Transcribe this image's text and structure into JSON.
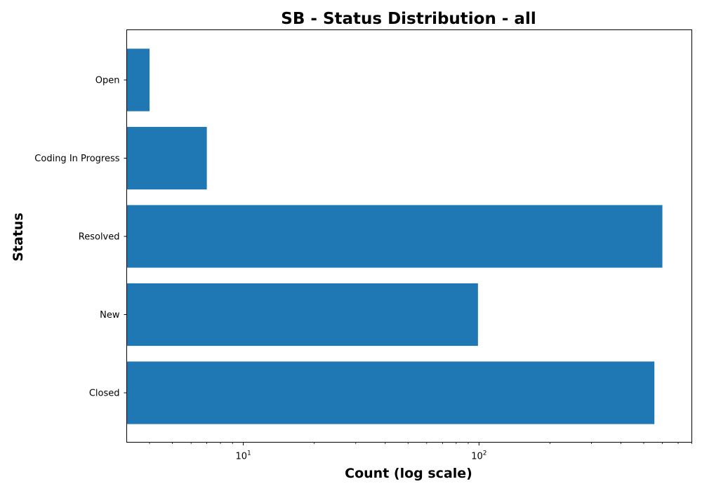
{
  "chart_data": {
    "type": "bar",
    "orientation": "horizontal",
    "title": "SB - Status Distribution - all",
    "xlabel": "Count (log scale)",
    "ylabel": "Status",
    "x_scale": "log",
    "xlim": [
      3.2,
      800
    ],
    "x_major_ticks": [
      10,
      100
    ],
    "categories": [
      "Open",
      "Coding In Progress",
      "Resolved",
      "New",
      "Closed"
    ],
    "values": [
      4,
      7,
      600,
      99,
      555
    ],
    "bar_color": "#1f77b4",
    "grid": false,
    "legend": "none"
  }
}
